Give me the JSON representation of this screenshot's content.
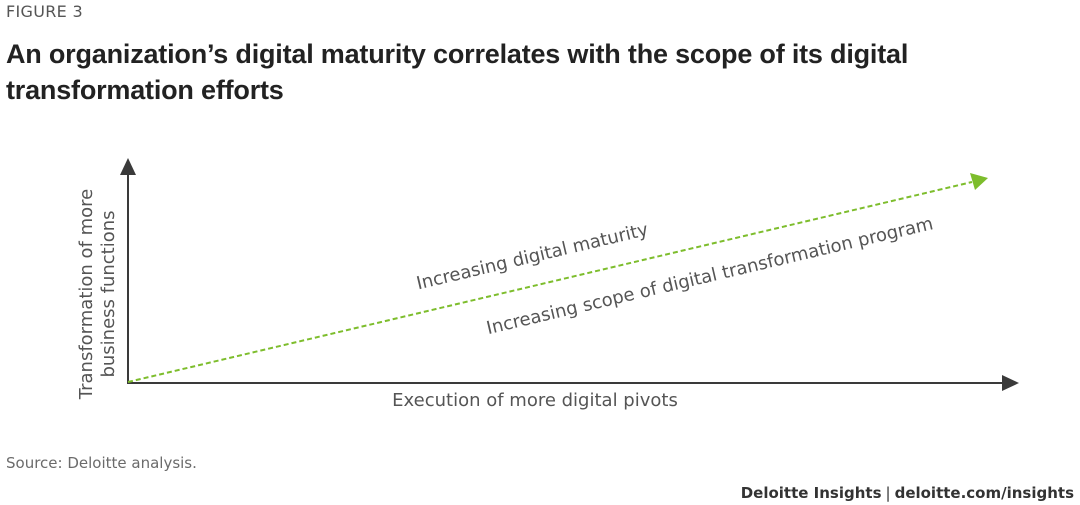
{
  "figure_label": "FIGURE 3",
  "title": "An organization’s digital maturity correlates with the scope of its digital transformation efforts",
  "diagram": {
    "y_axis_label_line1": "Transformation of more",
    "y_axis_label_line2": "business functions",
    "x_axis_label": "Execution of more digital pivots",
    "trend_label_top": "Increasing digital maturity",
    "trend_label_bottom": "Increasing scope of digital transformation program",
    "colors": {
      "axis": "#3a3a3a",
      "trend": "#7dbd2c",
      "text": "#555555"
    }
  },
  "footer": {
    "source": "Source: Deloitte analysis.",
    "brand": "Deloitte Insights",
    "separator": "|",
    "url": "deloitte.com/insights"
  }
}
